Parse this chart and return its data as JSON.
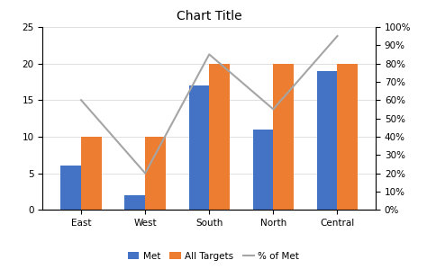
{
  "categories": [
    "East",
    "West",
    "South",
    "North",
    "Central"
  ],
  "met": [
    6,
    2,
    17,
    11,
    19
  ],
  "all_targets": [
    10,
    10,
    20,
    20,
    20
  ],
  "pct_of_met": [
    0.6,
    0.2,
    0.85,
    0.55,
    0.95
  ],
  "met_color": "#4472C4",
  "targets_color": "#ED7D31",
  "line_color": "#A5A5A5",
  "title": "Chart Title",
  "ylim_left": [
    0,
    25
  ],
  "ylim_right": [
    0,
    1.0
  ],
  "yticks_left": [
    0,
    5,
    10,
    15,
    20,
    25
  ],
  "yticks_right": [
    0.0,
    0.1,
    0.2,
    0.3,
    0.4,
    0.5,
    0.6,
    0.7,
    0.8,
    0.9,
    1.0
  ],
  "legend_labels": [
    "Met",
    "All Targets",
    "% of Met"
  ],
  "bar_width": 0.32,
  "title_fontsize": 10,
  "tick_fontsize": 7.5,
  "legend_fontsize": 7.5
}
